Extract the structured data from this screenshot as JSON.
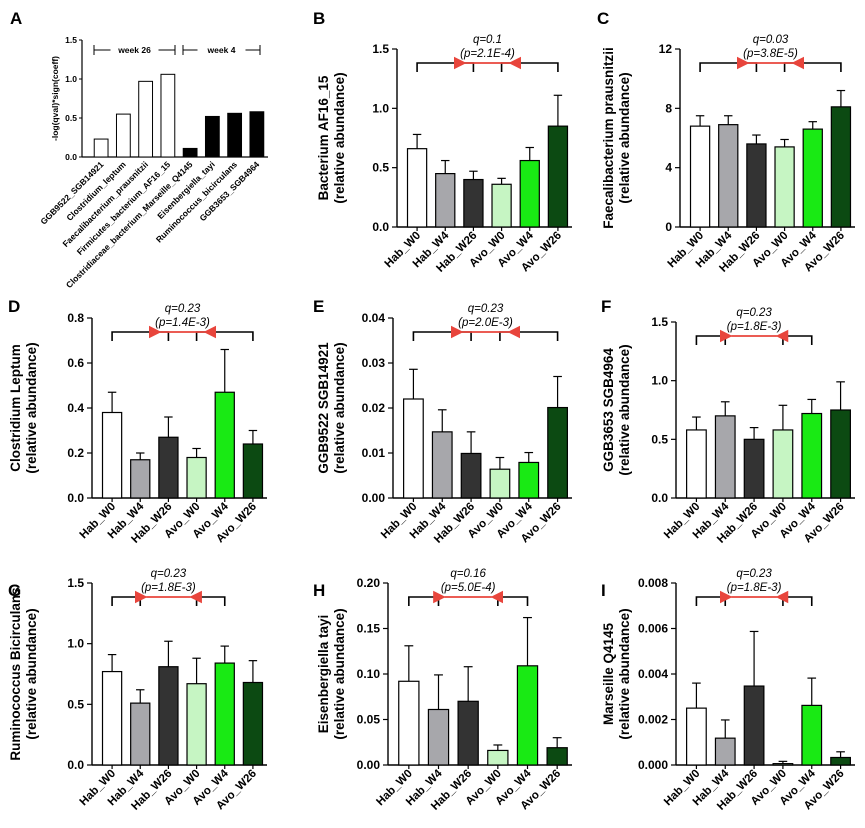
{
  "figure": {
    "panel_A": {
      "letter": "A",
      "ylabel": "-log(qval)*sign(coeff)",
      "y_ticks": [
        "0.0",
        "0.5",
        "1.0",
        "1.5"
      ],
      "groups": [
        "week 26",
        "week 4"
      ]
    }
  },
  "colors": {
    "Hab_W0": "#ffffff",
    "Hab_W4": "#a7a7ab",
    "Hab_W26": "#333333",
    "Avo_W0": "#c6f5c3",
    "Avo_W4": "#19ea14",
    "Avo_W26": "#0c4a12",
    "arrow": "#e8453c",
    "panelA_week26": "#ffffff",
    "panelA_week4": "#000000"
  },
  "chart_data": [
    {
      "panel": "A",
      "type": "bar",
      "title": "",
      "ylabel": "-log(qval)*sign(coeff)",
      "ylim": [
        0,
        1.5
      ],
      "categories": [
        "GGB9522_SGB14921",
        "Clostridium_leptum",
        "Faecalibacterium_prausnitzii",
        "Firmicutes_bacterium_AF16_15",
        "Clostridiaceae_bacterium_Marseille_Q4145",
        "Eisenbergiella_tayi",
        "Ruminococcus_bicirculans",
        "GGB3653_SGB4964"
      ],
      "values": [
        0.23,
        0.55,
        0.97,
        1.06,
        0.11,
        0.52,
        0.56,
        0.58
      ],
      "group_labels": [
        "week 26",
        "week 4"
      ]
    },
    {
      "panel": "B",
      "type": "bar",
      "ylabel": "Bacterium AF16_15",
      "ylabel2": "(relative abundance)",
      "ylim": [
        0,
        1.5
      ],
      "y_ticks": [
        "0.0",
        "0.5",
        "1.0",
        "1.5"
      ],
      "categories": [
        "Hab_W0",
        "Hab_W4",
        "Hab_W26",
        "Avo_W0",
        "Avo_W4",
        "Avo_W26"
      ],
      "values": [
        0.66,
        0.45,
        0.4,
        0.36,
        0.56,
        0.85
      ],
      "errors": [
        0.12,
        0.11,
        0.07,
        0.05,
        0.11,
        0.26
      ],
      "q_text": "q=0.1",
      "p_text": "(p=2.1E-4)",
      "bracket": "wide"
    },
    {
      "panel": "C",
      "type": "bar",
      "ylabel": "Faecalibacterium prausnitzii",
      "ylabel2": "(relative abundance)",
      "ylim": [
        0,
        12
      ],
      "y_ticks": [
        "0",
        "4",
        "8",
        "12"
      ],
      "categories": [
        "Hab_W0",
        "Hab_W4",
        "Hab_W26",
        "Avo_W0",
        "Avo_W4",
        "Avo_W26"
      ],
      "values": [
        6.8,
        6.9,
        5.6,
        5.4,
        6.6,
        8.1
      ],
      "errors": [
        0.7,
        0.6,
        0.6,
        0.5,
        0.5,
        1.1
      ],
      "q_text": "q=0.03",
      "p_text": "(p=3.8E-5)",
      "bracket": "wide"
    },
    {
      "panel": "D",
      "type": "bar",
      "ylabel": "Clostridium Leptum",
      "ylabel2": "(relative abundance)",
      "ylim": [
        0,
        0.8
      ],
      "y_ticks": [
        "0.0",
        "0.2",
        "0.4",
        "0.6",
        "0.8"
      ],
      "categories": [
        "Hab_W0",
        "Hab_W4",
        "Hab_W26",
        "Avo_W0",
        "Avo_W4",
        "Avo_W26"
      ],
      "values": [
        0.38,
        0.17,
        0.27,
        0.18,
        0.47,
        0.24
      ],
      "errors": [
        0.09,
        0.03,
        0.09,
        0.04,
        0.19,
        0.06
      ],
      "q_text": "q=0.23",
      "p_text": "(p=1.4E-3)",
      "bracket": "wide"
    },
    {
      "panel": "E",
      "type": "bar",
      "ylabel": "GGB9522 SGB14921",
      "ylabel2": "(relative abundance)",
      "ylim": [
        0,
        0.04
      ],
      "y_ticks": [
        "0.00",
        "0.01",
        "0.02",
        "0.03",
        "0.04"
      ],
      "categories": [
        "Hab_W0",
        "Hab_W4",
        "Hab_W26",
        "Avo_W0",
        "Avo_W4",
        "Avo_W26"
      ],
      "values": [
        0.022,
        0.0147,
        0.0099,
        0.0064,
        0.0079,
        0.0201
      ],
      "errors": [
        0.0066,
        0.0049,
        0.0048,
        0.0026,
        0.0022,
        0.0069
      ],
      "q_text": "q=0.23",
      "p_text": "(p=2.0E-3)",
      "bracket": "wide"
    },
    {
      "panel": "F",
      "type": "bar",
      "ylabel": "GGB3653 SGB4964",
      "ylabel2": "(relative abundance)",
      "ylim": [
        0,
        1.5
      ],
      "y_ticks": [
        "0.0",
        "0.5",
        "1.0",
        "1.5"
      ],
      "categories": [
        "Hab_W0",
        "Hab_W4",
        "Hab_W26",
        "Avo_W0",
        "Avo_W4",
        "Avo_W26"
      ],
      "values": [
        0.58,
        0.7,
        0.5,
        0.58,
        0.72,
        0.75
      ],
      "errors": [
        0.11,
        0.12,
        0.1,
        0.21,
        0.12,
        0.24
      ],
      "q_text": "q=0.23",
      "p_text": "(p=1.8E-3)",
      "bracket": "narrow"
    },
    {
      "panel": "G",
      "type": "bar",
      "ylabel": "Ruminococcus Bicirculans",
      "ylabel2": "(relative abundance)",
      "ylim": [
        0,
        1.5
      ],
      "y_ticks": [
        "0.0",
        "0.5",
        "1.0",
        "1.5"
      ],
      "categories": [
        "Hab_W0",
        "Hab_W4",
        "Hab_W26",
        "Avo_W0",
        "Avo_W4",
        "Avo_W26"
      ],
      "values": [
        0.77,
        0.51,
        0.81,
        0.67,
        0.84,
        0.68
      ],
      "errors": [
        0.14,
        0.11,
        0.21,
        0.21,
        0.14,
        0.18
      ],
      "q_text": "q=0.23",
      "p_text": "(p=1.8E-3)",
      "bracket": "narrow"
    },
    {
      "panel": "H",
      "type": "bar",
      "ylabel": "Eisenbergiella tayi",
      "ylabel2": "(relative abundance)",
      "ylim": [
        0,
        0.2
      ],
      "y_ticks": [
        "0.00",
        "0.05",
        "0.10",
        "0.15",
        "0.20"
      ],
      "categories": [
        "Hab_W0",
        "Hab_W4",
        "Hab_W26",
        "Avo_W0",
        "Avo_W4",
        "Avo_W26"
      ],
      "values": [
        0.092,
        0.061,
        0.07,
        0.016,
        0.109,
        0.019
      ],
      "errors": [
        0.039,
        0.038,
        0.038,
        0.006,
        0.053,
        0.011
      ],
      "q_text": "q=0.16",
      "p_text": "(p=5.0E-4)",
      "bracket": "narrow"
    },
    {
      "panel": "I",
      "type": "bar",
      "ylabel": "Marseille Q4145",
      "ylabel2": "(relative abundance)",
      "ylim": [
        0,
        0.008
      ],
      "y_ticks": [
        "0.000",
        "0.002",
        "0.004",
        "0.006",
        "0.008"
      ],
      "categories": [
        "Hab_W0",
        "Hab_W4",
        "Hab_W26",
        "Avo_W0",
        "Avo_W4",
        "Avo_W26"
      ],
      "values": [
        0.0025,
        0.00118,
        0.00347,
        6e-05,
        0.00262,
        0.00033
      ],
      "errors": [
        0.0011,
        0.0008,
        0.0024,
        0.0001,
        0.0012,
        0.00025
      ],
      "q_text": "q=0.23",
      "p_text": "(p=1.8E-3)",
      "bracket": "narrow"
    }
  ]
}
